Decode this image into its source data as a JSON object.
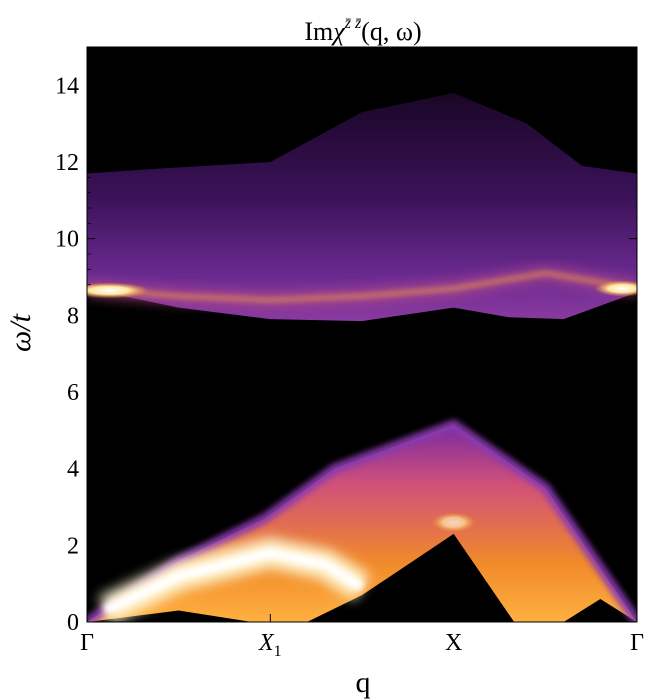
{
  "chart_data": {
    "type": "heatmap",
    "title_base": "Im",
    "title_symbol": "χ",
    "title_superscript": "z̄ z̄",
    "title_args": "(q, ω)",
    "xlabel": "q",
    "ylabel": "ω/t",
    "ylim": [
      0,
      15
    ],
    "yticks": [
      0,
      2,
      4,
      6,
      8,
      10,
      12,
      14
    ],
    "xticks": [
      {
        "label": "Γ",
        "pos": 0
      },
      {
        "label": "X",
        "sub": "1",
        "pos": 1
      },
      {
        "label": "X",
        "pos": 2
      },
      {
        "label": "Γ",
        "pos": 3
      }
    ],
    "xlim": [
      0,
      3
    ],
    "colormap": [
      "#000000",
      "#2a0a3a",
      "#5a1a7a",
      "#8a3aa0",
      "#c8507a",
      "#e8703a",
      "#f8a020",
      "#ffe8a0",
      "#ffffff"
    ],
    "upper_band": {
      "top": [
        [
          0,
          11.7
        ],
        [
          0.3,
          11.8
        ],
        [
          1.0,
          12.0
        ],
        [
          1.5,
          13.3
        ],
        [
          2.0,
          13.8
        ],
        [
          2.4,
          13.0
        ],
        [
          2.7,
          11.9
        ],
        [
          3.0,
          11.7
        ]
      ],
      "bottom": [
        [
          0,
          8.7
        ],
        [
          0.5,
          8.2
        ],
        [
          1.0,
          7.9
        ],
        [
          1.5,
          7.85
        ],
        [
          2.0,
          8.2
        ],
        [
          2.3,
          7.95
        ],
        [
          2.6,
          7.9
        ],
        [
          3.0,
          8.6
        ]
      ],
      "bright_line": [
        [
          0,
          8.7
        ],
        [
          0.5,
          8.5
        ],
        [
          1.0,
          8.4
        ],
        [
          1.5,
          8.5
        ],
        [
          2.0,
          8.7
        ],
        [
          2.5,
          9.1
        ],
        [
          3.0,
          8.7
        ]
      ]
    },
    "lower_band": {
      "top": [
        [
          0,
          0
        ],
        [
          0.5,
          1.6
        ],
        [
          0.97,
          2.7
        ],
        [
          1.35,
          4.0
        ],
        [
          2.0,
          5.15
        ],
        [
          2.5,
          3.5
        ],
        [
          3.0,
          0
        ]
      ],
      "bottom": [
        [
          0,
          0
        ],
        [
          0.5,
          0.3
        ],
        [
          0.9,
          0.0
        ],
        [
          1.2,
          0.0
        ],
        [
          1.5,
          0.7
        ],
        [
          2.0,
          2.3
        ],
        [
          2.33,
          0.0
        ],
        [
          2.6,
          0.0
        ],
        [
          2.8,
          0.6
        ],
        [
          3.0,
          0
        ]
      ],
      "bright_core": [
        [
          0.1,
          0.3
        ],
        [
          0.5,
          1.2
        ],
        [
          1.0,
          1.8
        ],
        [
          1.3,
          1.5
        ],
        [
          1.5,
          0.9
        ]
      ]
    }
  }
}
